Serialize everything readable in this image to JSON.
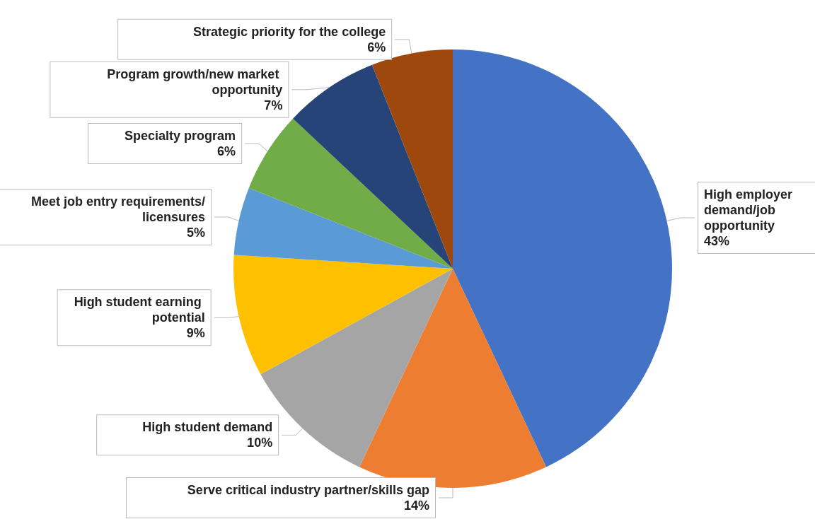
{
  "chart_data": {
    "type": "pie",
    "categories": [
      "High employer demand/job opportunity",
      "Serve critical industry partner/skills gap",
      "High student demand",
      "High student earning potential",
      "Meet job entry requirements/licensures",
      "Specialty program",
      "Program growth/new market opportunity",
      "Strategic priority for the college"
    ],
    "values": [
      43,
      14,
      10,
      9,
      5,
      6,
      7,
      6
    ],
    "value_labels": [
      "43%",
      "14%",
      "10%",
      "9%",
      "5%",
      "6%",
      "7%",
      "6%"
    ],
    "colors": [
      "#4472c4",
      "#ed7d31",
      "#a5a5a5",
      "#ffc000",
      "#5b9bd5",
      "#70ad47",
      "#264478",
      "#9e480e"
    ],
    "legend": false
  }
}
